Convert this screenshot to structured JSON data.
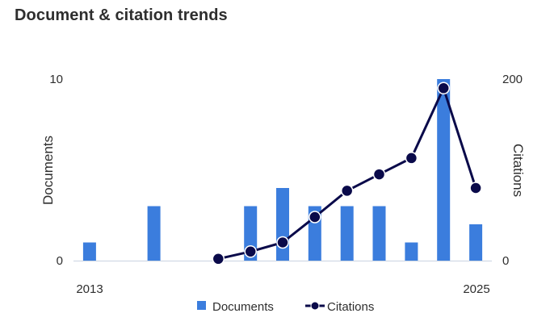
{
  "title": "Document & citation trends",
  "colors": {
    "documents": "#3b7ddd",
    "citations": "#0a0a4a",
    "axis": "#c9d3e0",
    "text": "#2e2e2e"
  },
  "chart_data": {
    "type": "bar",
    "title": "Document & citation trends",
    "categories": [
      2013,
      2014,
      2015,
      2016,
      2017,
      2018,
      2019,
      2020,
      2021,
      2022,
      2023,
      2024,
      2025
    ],
    "x_tick_labels": [
      "2013",
      "2025"
    ],
    "y_left": {
      "label": "Documents",
      "range": [
        0,
        10
      ],
      "ticks": [
        "0",
        "10"
      ]
    },
    "y_right": {
      "label": "Citations",
      "range": [
        0,
        200
      ],
      "ticks": [
        "0",
        "200"
      ]
    },
    "series": [
      {
        "name": "Documents",
        "type": "bar",
        "axis": "left",
        "values": [
          1,
          0,
          3,
          0,
          0,
          3,
          4,
          3,
          3,
          3,
          1,
          10,
          2
        ]
      },
      {
        "name": "Citations",
        "type": "line",
        "axis": "right",
        "values": [
          null,
          null,
          null,
          null,
          2,
          10,
          20,
          48,
          77,
          95,
          113,
          190,
          80
        ]
      }
    ],
    "grid": false,
    "legend": "bottom-center"
  }
}
